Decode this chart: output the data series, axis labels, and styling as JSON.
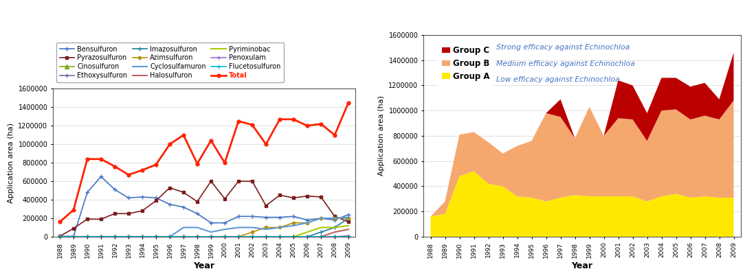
{
  "years": [
    1988,
    1989,
    1990,
    1991,
    1992,
    1993,
    1994,
    1995,
    1996,
    1997,
    1998,
    1999,
    2000,
    2001,
    2002,
    2003,
    2004,
    2005,
    2006,
    2007,
    2008,
    2009
  ],
  "series": {
    "Bensulfuron": [
      5000,
      5000,
      480000,
      650000,
      510000,
      420000,
      430000,
      420000,
      350000,
      320000,
      250000,
      150000,
      150000,
      220000,
      220000,
      210000,
      210000,
      220000,
      180000,
      200000,
      180000,
      240000
    ],
    "Pyrazosulfuron": [
      5000,
      90000,
      190000,
      190000,
      250000,
      250000,
      280000,
      390000,
      530000,
      480000,
      380000,
      600000,
      410000,
      600000,
      600000,
      335000,
      450000,
      420000,
      440000,
      430000,
      220000,
      160000
    ],
    "Cinosulfuron": [
      0,
      0,
      0,
      0,
      0,
      0,
      0,
      0,
      0,
      0,
      0,
      0,
      0,
      0,
      0,
      0,
      0,
      0,
      0,
      0,
      0,
      0
    ],
    "Ethoxysulfuron": [
      0,
      0,
      0,
      0,
      0,
      0,
      0,
      0,
      0,
      0,
      0,
      0,
      0,
      0,
      0,
      0,
      0,
      0,
      0,
      0,
      0,
      10000
    ],
    "Imazosulfuron": [
      0,
      0,
      0,
      0,
      0,
      0,
      0,
      0,
      0,
      0,
      0,
      0,
      0,
      0,
      0,
      0,
      0,
      0,
      0,
      50000,
      100000,
      200000
    ],
    "Azimsulfuron": [
      0,
      0,
      0,
      0,
      0,
      0,
      0,
      0,
      0,
      0,
      0,
      0,
      0,
      0,
      50000,
      100000,
      100000,
      150000,
      150000,
      200000,
      200000,
      200000
    ],
    "Cyclosulfamuron": [
      0,
      0,
      0,
      0,
      0,
      0,
      0,
      0,
      0,
      100000,
      100000,
      50000,
      80000,
      100000,
      100000,
      80000,
      100000,
      120000,
      150000,
      200000,
      200000,
      210000
    ],
    "Halosulfuron": [
      0,
      0,
      0,
      0,
      0,
      0,
      0,
      0,
      0,
      0,
      0,
      0,
      0,
      0,
      0,
      0,
      0,
      0,
      0,
      0,
      50000,
      80000
    ],
    "Pyriminobac": [
      0,
      0,
      0,
      0,
      0,
      0,
      0,
      0,
      0,
      0,
      0,
      0,
      0,
      0,
      0,
      0,
      0,
      0,
      50000,
      100000,
      100000,
      120000
    ],
    "Penoxulam": [
      0,
      0,
      0,
      0,
      0,
      0,
      0,
      0,
      0,
      0,
      0,
      0,
      0,
      0,
      0,
      0,
      0,
      0,
      0,
      0,
      0,
      0
    ],
    "Flucetosulfuron": [
      0,
      0,
      0,
      0,
      0,
      0,
      0,
      0,
      0,
      0,
      0,
      0,
      0,
      0,
      0,
      0,
      0,
      0,
      0,
      0,
      0,
      0
    ],
    "Total": [
      160000,
      290000,
      840000,
      840000,
      760000,
      670000,
      720000,
      780000,
      1000000,
      1100000,
      790000,
      1040000,
      800000,
      1250000,
      1210000,
      1000000,
      1270000,
      1270000,
      1200000,
      1220000,
      1100000,
      1450000
    ]
  },
  "line_styles": {
    "Bensulfuron": {
      "color": "#4472C4",
      "marker": "+",
      "ms": 5,
      "lw": 1.2
    },
    "Pyrazosulfuron": {
      "color": "#7B1C1C",
      "marker": "s",
      "ms": 3.5,
      "lw": 1.2
    },
    "Cinosulfuron": {
      "color": "#7EA616",
      "marker": "^",
      "ms": 4,
      "lw": 1.2
    },
    "Ethoxysulfuron": {
      "color": "#7868A0",
      "marker": "+",
      "ms": 5,
      "lw": 1.2
    },
    "Imazosulfuron": {
      "color": "#1C7FA0",
      "marker": "+",
      "ms": 5,
      "lw": 1.2
    },
    "Azimsulfuron": {
      "color": "#B8900A",
      "marker": "o",
      "ms": 3,
      "lw": 1.2
    },
    "Cyclosulfamuron": {
      "color": "#5B9BD5",
      "marker": null,
      "ms": 0,
      "lw": 1.5
    },
    "Halosulfuron": {
      "color": "#C06060",
      "marker": null,
      "ms": 0,
      "lw": 1.5
    },
    "Pyriminobac": {
      "color": "#AACC00",
      "marker": null,
      "ms": 0,
      "lw": 1.5
    },
    "Penoxulam": {
      "color": "#9370DB",
      "marker": "+",
      "ms": 5,
      "lw": 1.2
    },
    "Flucetosulfuron": {
      "color": "#00C0E0",
      "marker": "+",
      "ms": 5,
      "lw": 1.2
    },
    "Total": {
      "color": "#FF2200",
      "marker": "o",
      "ms": 3.5,
      "lw": 2.0
    }
  },
  "series_order": [
    "Bensulfuron",
    "Pyrazosulfuron",
    "Cinosulfuron",
    "Ethoxysulfuron",
    "Imazosulfuron",
    "Azimsulfuron",
    "Cyclosulfamuron",
    "Halosulfuron",
    "Pyriminobac",
    "Penoxulam",
    "Flucetosulfuron",
    "Total"
  ],
  "group_A": [
    160000,
    180000,
    480000,
    520000,
    420000,
    400000,
    320000,
    310000,
    280000,
    310000,
    330000,
    320000,
    320000,
    320000,
    320000,
    280000,
    320000,
    340000,
    310000,
    320000,
    310000,
    310000
  ],
  "group_B": [
    0,
    100000,
    330000,
    310000,
    330000,
    260000,
    400000,
    450000,
    700000,
    640000,
    450000,
    710000,
    480000,
    620000,
    610000,
    480000,
    680000,
    670000,
    620000,
    640000,
    620000,
    770000
  ],
  "group_C": [
    0,
    0,
    0,
    0,
    0,
    0,
    0,
    0,
    0,
    140000,
    0,
    0,
    0,
    300000,
    270000,
    220000,
    260000,
    250000,
    260000,
    260000,
    160000,
    380000
  ],
  "group_A_color": "#FFE800",
  "group_B_color": "#F5A86E",
  "group_C_color": "#BB0000",
  "ylim": [
    0,
    1600000
  ],
  "yticks": [
    0,
    200000,
    400000,
    600000,
    800000,
    1000000,
    1200000,
    1400000,
    1600000
  ],
  "ylabel": "Application area (ha)",
  "xlabel": "Year",
  "total_color": "#FF2200",
  "legend_blue": "#4472C4"
}
